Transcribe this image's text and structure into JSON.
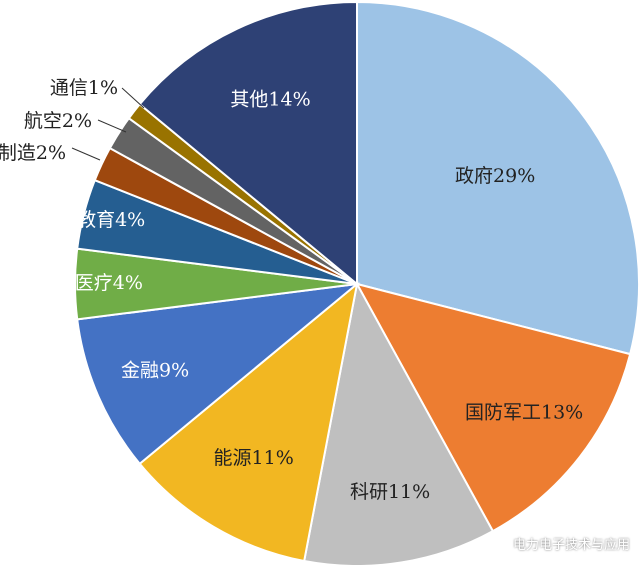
{
  "chart_data": {
    "type": "pie",
    "slices": [
      {
        "label": "政府29%",
        "value": 29,
        "color": "#9dc3e6"
      },
      {
        "label": "国防军工13%",
        "value": 13,
        "color": "#ed7d31"
      },
      {
        "label": "科研11%",
        "value": 11,
        "color": "#bfbfbf"
      },
      {
        "label": "能源11%",
        "value": 11,
        "color": "#f2b722"
      },
      {
        "label": "金融9%",
        "value": 9,
        "color": "#4472c4"
      },
      {
        "label": "医疗4%",
        "value": 4,
        "color": "#70ad47"
      },
      {
        "label": "教育4%",
        "value": 4,
        "color": "#255e91"
      },
      {
        "label": "制造2%",
        "value": 2,
        "color": "#9e480e"
      },
      {
        "label": "航空2%",
        "value": 2,
        "color": "#636363"
      },
      {
        "label": "通信1%",
        "value": 1,
        "color": "#997300"
      },
      {
        "label": "其他14%",
        "value": 14,
        "color": "#2e4175"
      }
    ]
  },
  "watermark": {
    "text": "电力电子技术与应用"
  }
}
